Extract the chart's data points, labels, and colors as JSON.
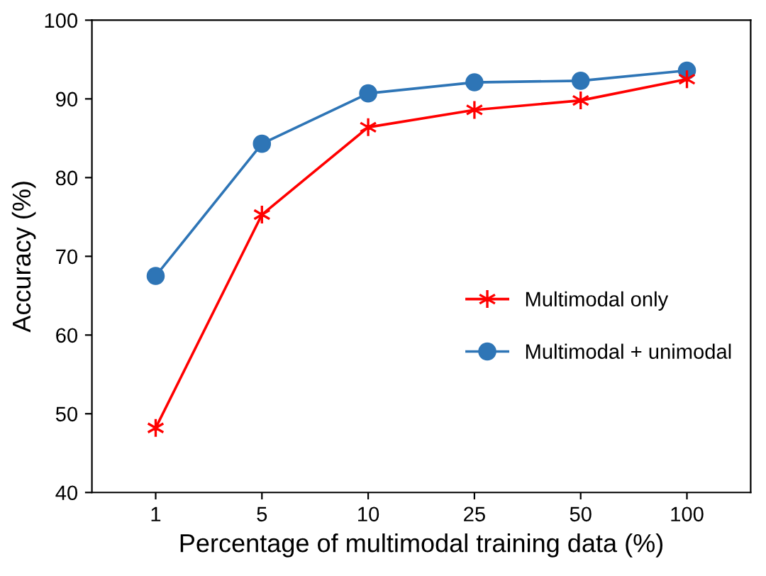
{
  "chart_data": {
    "type": "line",
    "xlabel": "Percentage of multimodal training data (%)",
    "ylabel": "Accuracy (%)",
    "categories": [
      "1",
      "5",
      "10",
      "25",
      "50",
      "100"
    ],
    "series": [
      {
        "name": "Multimodal only",
        "color": "#ff0000",
        "marker": "cross",
        "values": [
          48.2,
          75.3,
          86.4,
          88.6,
          89.8,
          92.5
        ]
      },
      {
        "name": "Multimodal + unimodal",
        "color": "#2e75b6",
        "marker": "circle",
        "values": [
          67.5,
          84.3,
          90.7,
          92.1,
          92.3,
          93.6
        ]
      }
    ],
    "ylim": [
      40,
      100
    ],
    "yticks": [
      40,
      50,
      60,
      70,
      80,
      90,
      100
    ],
    "grid": false,
    "legend": "right",
    "line_style": "solid"
  }
}
